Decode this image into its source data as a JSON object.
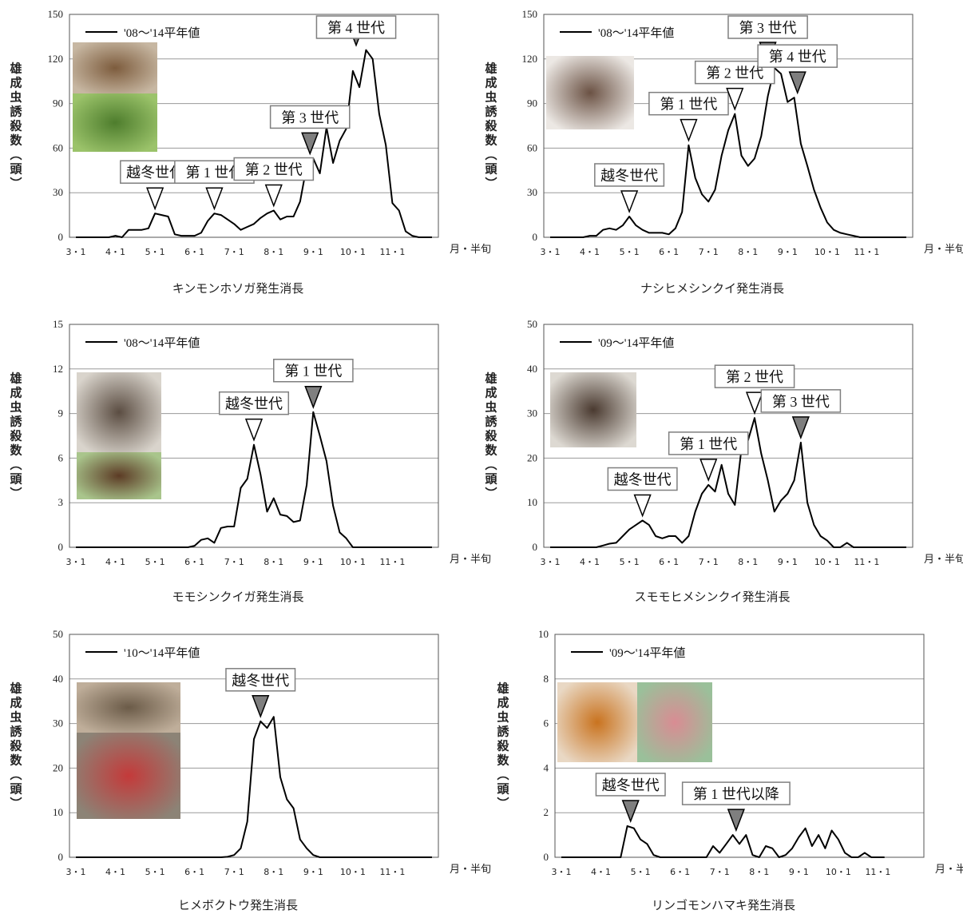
{
  "common": {
    "ylabel": "雄成虫誘殺数（頭）",
    "xunit": "月・半旬",
    "xticks": [
      "3・1",
      "4・1",
      "5・1",
      "6・1",
      "7・1",
      "8・1",
      "9・1",
      "10・1",
      "11・1"
    ]
  },
  "chart_data": [
    {
      "type": "line",
      "title": "キンモンホソガ発生消長",
      "legend": "'08～'14平年値",
      "ylim": [
        0,
        150
      ],
      "yticks": [
        0,
        30,
        60,
        90,
        120,
        150
      ],
      "x": [
        1,
        2,
        3,
        4,
        5,
        6,
        7,
        8,
        9,
        10,
        11,
        12,
        13,
        14,
        15,
        16,
        17,
        18,
        19,
        20,
        21,
        22,
        23,
        24,
        25,
        26,
        27,
        28,
        29,
        30,
        31,
        32,
        33,
        34,
        35,
        36,
        37,
        38,
        39,
        40,
        41,
        42,
        43,
        44,
        45,
        46,
        47,
        48,
        49,
        50,
        51,
        52,
        53,
        54,
        55
      ],
      "series": [
        {
          "values": [
            0,
            0,
            0,
            0,
            0,
            0,
            1,
            0,
            5,
            5,
            5,
            6,
            16,
            15,
            14,
            2,
            1,
            1,
            1,
            3,
            11,
            16,
            15,
            12,
            9,
            5,
            7,
            9,
            13,
            16,
            18,
            12,
            14,
            14,
            24,
            48,
            53,
            43,
            74,
            50,
            65,
            73,
            112,
            101,
            126,
            120,
            83,
            62,
            23,
            18,
            4,
            1,
            0,
            0,
            0
          ]
        }
      ],
      "annotations": [
        {
          "label": "越冬世代",
          "x": 13,
          "marker": "open"
        },
        {
          "label": "第 1 世代",
          "x": 22,
          "marker": "open"
        },
        {
          "label": "第 2 世代",
          "x": 31,
          "marker": "open"
        },
        {
          "label": "第 3 世代",
          "x": 36.5,
          "marker": "filled"
        },
        {
          "label": "第 4 世代",
          "x": 43.5,
          "marker": "filled"
        }
      ]
    },
    {
      "type": "line",
      "title": "ナシヒメシンクイ発生消長",
      "legend": "'08～'14平年値",
      "ylim": [
        0,
        150
      ],
      "yticks": [
        0,
        30,
        60,
        90,
        120,
        150
      ],
      "x": [
        1,
        2,
        3,
        4,
        5,
        6,
        7,
        8,
        9,
        10,
        11,
        12,
        13,
        14,
        15,
        16,
        17,
        18,
        19,
        20,
        21,
        22,
        23,
        24,
        25,
        26,
        27,
        28,
        29,
        30,
        31,
        32,
        33,
        34,
        35,
        36,
        37,
        38,
        39,
        40,
        41,
        42,
        43,
        44,
        45,
        46,
        47,
        48,
        49,
        50,
        51,
        52,
        53,
        54,
        55
      ],
      "series": [
        {
          "values": [
            0,
            0,
            0,
            0,
            0,
            0,
            1,
            1,
            5,
            6,
            5,
            8,
            14,
            8,
            5,
            3,
            3,
            3,
            2,
            6,
            17,
            62,
            40,
            29,
            24,
            32,
            55,
            72,
            83,
            55,
            48,
            53,
            68,
            95,
            114,
            110,
            91,
            94,
            63,
            48,
            32,
            20,
            10,
            5,
            3,
            2,
            1,
            0,
            0,
            0,
            0,
            0,
            0,
            0,
            0
          ]
        }
      ],
      "annotations": [
        {
          "label": "越冬世代",
          "x": 13,
          "marker": "open"
        },
        {
          "label": "第 1 世代",
          "x": 22,
          "marker": "open"
        },
        {
          "label": "第 2 世代",
          "x": 29,
          "marker": "open"
        },
        {
          "label": "第 3 世代",
          "x": 34,
          "marker": "filled"
        },
        {
          "label": "第 4 世代",
          "x": 38.5,
          "marker": "filled"
        }
      ]
    },
    {
      "type": "line",
      "title": "モモシンクイガ発生消長",
      "legend": "'08～'14平年値",
      "ylim": [
        0,
        15
      ],
      "yticks": [
        0,
        3,
        6,
        9,
        12,
        15
      ],
      "x": [
        1,
        2,
        3,
        4,
        5,
        6,
        7,
        8,
        9,
        10,
        11,
        12,
        13,
        14,
        15,
        16,
        17,
        18,
        19,
        20,
        21,
        22,
        23,
        24,
        25,
        26,
        27,
        28,
        29,
        30,
        31,
        32,
        33,
        34,
        35,
        36,
        37,
        38,
        39,
        40,
        41,
        42,
        43,
        44,
        45,
        46,
        47,
        48,
        49,
        50,
        51,
        52,
        53,
        54,
        55
      ],
      "series": [
        {
          "values": [
            0,
            0,
            0,
            0,
            0,
            0,
            0,
            0,
            0,
            0,
            0,
            0,
            0,
            0,
            0,
            0,
            0,
            0,
            0.1,
            0.5,
            0.6,
            0.3,
            1.3,
            1.4,
            1.4,
            4.0,
            4.6,
            6.9,
            4.9,
            2.4,
            3.3,
            2.2,
            2.1,
            1.7,
            1.8,
            4.2,
            9.1,
            7.5,
            5.8,
            2.8,
            1.0,
            0.6,
            0,
            0,
            0,
            0,
            0,
            0,
            0,
            0,
            0,
            0,
            0,
            0,
            0
          ]
        }
      ],
      "annotations": [
        {
          "label": "越冬世代",
          "x": 28,
          "marker": "open"
        },
        {
          "label": "第 1 世代",
          "x": 37,
          "marker": "filled"
        }
      ]
    },
    {
      "type": "line",
      "title": "スモモヒメシンクイ発生消長",
      "legend": "'09～'14平年値",
      "ylim": [
        0,
        50
      ],
      "yticks": [
        0,
        10,
        20,
        30,
        40,
        50
      ],
      "x": [
        1,
        2,
        3,
        4,
        5,
        6,
        7,
        8,
        9,
        10,
        11,
        12,
        13,
        14,
        15,
        16,
        17,
        18,
        19,
        20,
        21,
        22,
        23,
        24,
        25,
        26,
        27,
        28,
        29,
        30,
        31,
        32,
        33,
        34,
        35,
        36,
        37,
        38,
        39,
        40,
        41,
        42,
        43,
        44,
        45,
        46,
        47,
        48,
        49,
        50,
        51,
        52,
        53,
        54,
        55
      ],
      "series": [
        {
          "values": [
            0,
            0,
            0,
            0,
            0,
            0,
            0,
            0,
            0.4,
            0.8,
            1,
            2.5,
            4,
            5,
            6,
            5,
            2.5,
            2,
            2.5,
            2.5,
            1,
            2.5,
            8,
            12,
            14,
            12.5,
            18.5,
            12,
            9.5,
            22,
            24,
            29,
            21,
            15,
            8,
            10.5,
            12,
            15,
            23.5,
            10,
            5,
            2.5,
            1.5,
            0,
            0,
            1,
            0,
            0,
            0,
            0,
            0,
            0,
            0,
            0,
            0
          ]
        }
      ],
      "annotations": [
        {
          "label": "越冬世代",
          "x": 15,
          "marker": "open"
        },
        {
          "label": "第 1 世代",
          "x": 25,
          "marker": "open"
        },
        {
          "label": "第 2 世代",
          "x": 32,
          "marker": "open"
        },
        {
          "label": "第 3 世代",
          "x": 39,
          "marker": "filled"
        }
      ]
    },
    {
      "type": "line",
      "title": "ヒメボクトウ発生消長",
      "legend": "'10～'14平年値",
      "ylim": [
        0,
        50
      ],
      "yticks": [
        0,
        10,
        20,
        30,
        40,
        50
      ],
      "x": [
        1,
        2,
        3,
        4,
        5,
        6,
        7,
        8,
        9,
        10,
        11,
        12,
        13,
        14,
        15,
        16,
        17,
        18,
        19,
        20,
        21,
        22,
        23,
        24,
        25,
        26,
        27,
        28,
        29,
        30,
        31,
        32,
        33,
        34,
        35,
        36,
        37,
        38,
        39,
        40,
        41,
        42,
        43,
        44,
        45,
        46,
        47,
        48,
        49,
        50,
        51,
        52,
        53,
        54,
        55
      ],
      "series": [
        {
          "values": [
            0,
            0,
            0,
            0,
            0,
            0,
            0,
            0,
            0,
            0,
            0,
            0,
            0,
            0,
            0,
            0,
            0,
            0,
            0,
            0,
            0,
            0,
            0,
            0.1,
            0.5,
            2,
            8,
            26.5,
            30.5,
            29,
            31.5,
            18,
            13,
            11,
            4,
            2,
            0.5,
            0,
            0,
            0,
            0,
            0,
            0,
            0,
            0,
            0,
            0,
            0,
            0,
            0,
            0,
            0,
            0,
            0,
            0
          ]
        }
      ],
      "annotations": [
        {
          "label": "越冬世代",
          "x": 29,
          "marker": "filled"
        }
      ]
    },
    {
      "type": "line",
      "title": "リンゴモンハマキ発生消長",
      "legend": "'09～'14平年値",
      "ylim": [
        0,
        10
      ],
      "yticks": [
        0,
        2,
        4,
        6,
        8,
        10
      ],
      "x": [
        1,
        2,
        3,
        4,
        5,
        6,
        7,
        8,
        9,
        10,
        11,
        12,
        13,
        14,
        15,
        16,
        17,
        18,
        19,
        20,
        21,
        22,
        23,
        24,
        25,
        26,
        27,
        28,
        29,
        30,
        31,
        32,
        33,
        34,
        35,
        36,
        37,
        38,
        39,
        40,
        41,
        42,
        43,
        44,
        45,
        46,
        47,
        48,
        49,
        50
      ],
      "series": [
        {
          "values": [
            0,
            0,
            0,
            0,
            0,
            0,
            0,
            0,
            0,
            0,
            1.4,
            1.3,
            0.8,
            0.6,
            0.1,
            0,
            0,
            0,
            0,
            0,
            0,
            0,
            0,
            0.5,
            0.2,
            0.6,
            1.0,
            0.6,
            1.0,
            0.1,
            0,
            0.5,
            0.4,
            0,
            0.1,
            0.4,
            0.9,
            1.3,
            0.5,
            1.0,
            0.4,
            1.2,
            0.8,
            0.2,
            0,
            0,
            0.2,
            0,
            0,
            0
          ]
        }
      ],
      "annotations": [
        {
          "label": "越冬世代",
          "x": 11.5,
          "marker": "filled"
        },
        {
          "label": "第 1 世代以降",
          "x": 27.5,
          "marker": "filled"
        }
      ]
    }
  ]
}
